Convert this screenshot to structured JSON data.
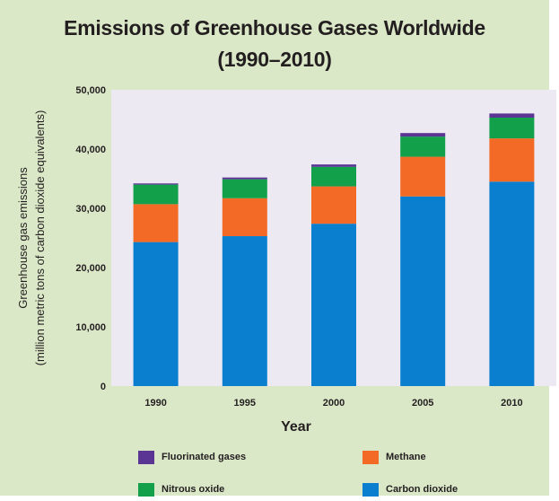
{
  "header": {
    "title_line1": "Emissions of Greenhouse Gases Worldwide",
    "title_line2": "(1990–2010)"
  },
  "chart_data": {
    "type": "bar",
    "stacked": true,
    "title": "Emissions of Greenhouse Gases Worldwide (1990–2010)",
    "xlabel": "Year",
    "ylabel_line1": "Greenhouse gas emissions",
    "ylabel_line2": "(million metric tons of carbon dioxide equivalents)",
    "categories": [
      "1990",
      "1995",
      "2000",
      "2005",
      "2010"
    ],
    "ylim": [
      0,
      50000
    ],
    "yticks": [
      0,
      10000,
      20000,
      30000,
      40000,
      50000
    ],
    "ytick_labels": [
      "0",
      "10,000",
      "20,000",
      "30,000",
      "40,000",
      "50,000"
    ],
    "grid": false,
    "legend_position": "bottom",
    "series": [
      {
        "name": "Carbon dioxide",
        "color": "#0a7fcf",
        "values": [
          24300,
          25300,
          27400,
          32000,
          34500
        ]
      },
      {
        "name": "Methane",
        "color": "#f26a25",
        "values": [
          6400,
          6400,
          6300,
          6700,
          7300
        ]
      },
      {
        "name": "Nitrous oxide",
        "color": "#12a04a",
        "values": [
          3300,
          3200,
          3300,
          3400,
          3500
        ]
      },
      {
        "name": "Fluorinated gases",
        "color": "#5b3594",
        "values": [
          200,
          300,
          400,
          600,
          700
        ]
      }
    ]
  },
  "legend": {
    "items": [
      {
        "label": "Fluorinated gases",
        "color": "#5b3594"
      },
      {
        "label": "Methane",
        "color": "#f26a25"
      },
      {
        "label": "Nitrous oxide",
        "color": "#12a04a"
      },
      {
        "label": "Carbon dioxide",
        "color": "#0a7fcf"
      }
    ]
  }
}
